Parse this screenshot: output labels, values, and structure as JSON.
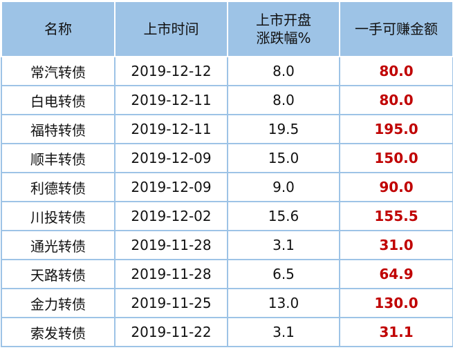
{
  "table": {
    "headers": [
      "名称",
      "上市时间",
      "上市开盘\n涨跌幅%",
      "一手可赚金额"
    ],
    "rows": [
      [
        "常汽转债",
        "2019-12-12",
        "8.0",
        "80.0"
      ],
      [
        "白电转债",
        "2019-12-11",
        "8.0",
        "80.0"
      ],
      [
        "福特转债",
        "2019-12-11",
        "19.5",
        "195.0"
      ],
      [
        "顺丰转债",
        "2019-12-09",
        "15.0",
        "150.0"
      ],
      [
        "利德转债",
        "2019-12-09",
        "9.0",
        "90.0"
      ],
      [
        "川投转债",
        "2019-12-02",
        "15.6",
        "155.5"
      ],
      [
        "通光转债",
        "2019-11-28",
        "3.1",
        "31.0"
      ],
      [
        "天路转债",
        "2019-11-28",
        "6.5",
        "64.9"
      ],
      [
        "金力转债",
        "2019-11-25",
        "13.0",
        "130.0"
      ],
      [
        "索发转债",
        "2019-11-22",
        "3.1",
        "31.1"
      ]
    ]
  }
}
